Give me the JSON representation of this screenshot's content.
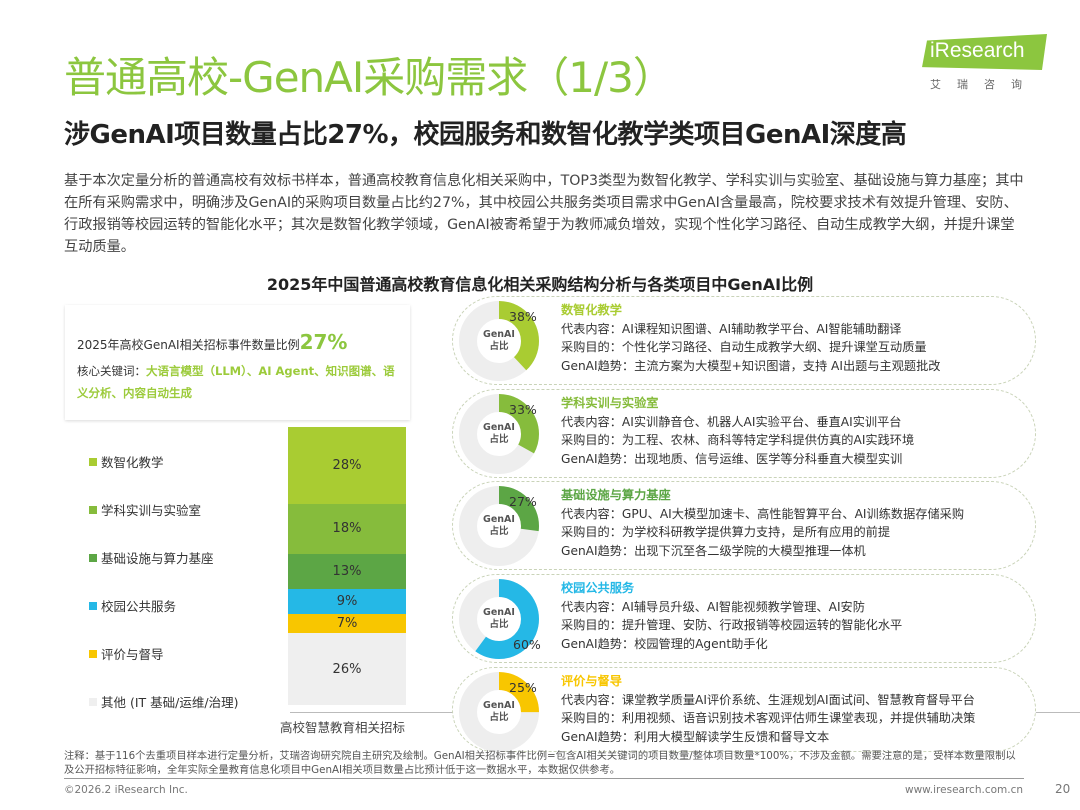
{
  "title": "普通高校-GenAI采购需求（1/3）",
  "subtitle": "涉GenAI项目数量占比27%，校园服务和数智化教学类项目GenAI深度高",
  "intro": "基于本次定量分析的普通高校有效标书样本，普通高校教育信息化相关采购中，TOP3类型为数智化教学、学科实训与实验室、基础设施与算力基座；其中在所有采购需求中，明确涉及GenAI的采购项目数量占比约27%，其中校园公共服务类项目需求中GenAI含量最高，院校要求技术有效提升管理、安防、行政报销等校园运转的智能化水平；其次是数智化教学领域，GenAI被寄希望于为教师减负增效，实现个性化学习路径、自动生成教学大纲，并提升课堂互动质量。",
  "logo": {
    "name": "iResearch",
    "sub": "艾瑞咨询"
  },
  "kpi": {
    "label": "2025年高校GenAI相关招标事件数量比例",
    "value": "27%",
    "keywords_label": "核心关键词：",
    "keywords": "大语言模型（LLM）、AI Agent、知识图谱、语义分析、内容自动生成"
  },
  "chart_data": [
    {
      "type": "bar",
      "stacked": true,
      "title": "2025年中国普通高校教育信息化相关采购结构分析与各类项目中GenAI比例",
      "categories": [
        "高校智慧教育相关招标"
      ],
      "xlabel": "高校智慧教育相关招标",
      "legend_position": "left",
      "series": [
        {
          "name": "数智化教学",
          "value": 28,
          "label": "28%",
          "color": "#a9cc32"
        },
        {
          "name": "学科实训与实验室",
          "value": 18,
          "label": "18%",
          "color": "#86bc3c"
        },
        {
          "name": "基础设施与算力基座",
          "value": 13,
          "label": "13%",
          "color": "#5ca645"
        },
        {
          "name": "校园公共服务",
          "value": 9,
          "label": "9%",
          "color": "#25b8e6"
        },
        {
          "name": "评价与督导",
          "value": 7,
          "label": "7%",
          "color": "#f8c600"
        },
        {
          "name": "其他 (IT 基础/运维/治理)",
          "value": 26,
          "label": "26%",
          "color": "#efefef"
        }
      ]
    },
    {
      "type": "pie",
      "donut": true,
      "center_label": "GenAI占比",
      "items": [
        {
          "category": "数智化教学",
          "value": 38,
          "label": "38%",
          "color": "#a9cc32"
        },
        {
          "category": "学科实训与实验室",
          "value": 33,
          "label": "33%",
          "color": "#86bc3c"
        },
        {
          "category": "基础设施与算力基座",
          "value": 27,
          "label": "27%",
          "color": "#5ca645"
        },
        {
          "category": "校园公共服务",
          "value": 60,
          "label": "60%",
          "color": "#25b8e6"
        },
        {
          "category": "评价与督导",
          "value": 25,
          "label": "25%",
          "color": "#f8c600"
        }
      ]
    }
  ],
  "cards": [
    {
      "title": "数智化教学",
      "content": "代表内容：AI课程知识图谱、AI辅助教学平台、AI智能辅助翻译",
      "purpose": "采购目的：个性化学习路径、自动生成教学大纲、提升课堂互动质量",
      "trend": "GenAI趋势：主流方案为大模型+知识图谱，支持 AI出题与主观题批改"
    },
    {
      "title": "学科实训与实验室",
      "content": "代表内容：AI实训静音仓、机器人AI实验平台、垂直AI实训平台",
      "purpose": "采购目的：为工程、农林、商科等特定学科提供仿真的AI实践环境",
      "trend": "GenAI趋势：出现地质、信号运维、医学等分科垂直大模型实训"
    },
    {
      "title": "基础设施与算力基座",
      "content": "代表内容：GPU、AI大模型加速卡、高性能智算平台、AI训练数据存储采购",
      "purpose": "采购目的：为学校科研教学提供算力支持，是所有应用的前提",
      "trend": "GenAI趋势：出现下沉至各二级学院的大模型推理一体机"
    },
    {
      "title": "校园公共服务",
      "content": "代表内容：AI辅导员升级、AI智能视频教学管理、AI安防",
      "purpose": "采购目的：提升管理、安防、行政报销等校园运转的智能化水平",
      "trend": "GenAI趋势：校园管理的Agent助手化"
    },
    {
      "title": "评价与督导",
      "content": "代表内容：课堂教学质量AI评价系统、生涯规划AI面试间、智慧教育督导平台",
      "purpose": "采购目的：利用视频、语音识别技术客观评估师生课堂表现，并提供辅助决策",
      "trend": "GenAI趋势：利用大模型解读学生反馈和督导文本"
    }
  ],
  "donut_center": [
    "GenAI",
    "占比"
  ],
  "note": "注释：基于116个去重项目样本进行定量分析，艾瑞咨询研究院自主研究及绘制。GenAI相关招标事件比例=包含AI相关关键词的项目数量/整体项目数量*100%，不涉及金额。需要注意的是，受样本数量限制以及公开招标特征影响，全年实际全量教育信息化项目中GenAI相关项目数量占比预计低于这一数据水平，本数据仅供参考。",
  "footer": {
    "copyright": "©2026.2 iResearch Inc.",
    "website": "www.iresearch.com.cn",
    "page": "20"
  }
}
